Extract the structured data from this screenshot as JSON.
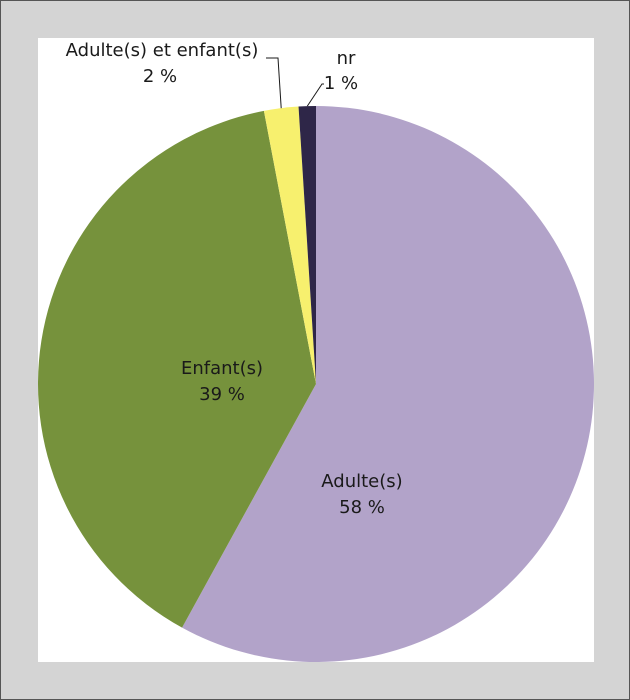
{
  "chart_data": {
    "type": "pie",
    "slices": [
      {
        "label": "Adulte(s)",
        "value_label": "58 %",
        "value": 58,
        "color": "#b2a3c9"
      },
      {
        "label": "Enfant(s)",
        "value_label": "39 %",
        "value": 39,
        "color": "#76923c"
      },
      {
        "label": "Adulte(s) et enfant(s)",
        "value_label": "2 %",
        "value": 2,
        "color": "#f7f06e"
      },
      {
        "label": "nr",
        "value_label": "1 %",
        "value": 1,
        "color": "#2e2648"
      }
    ]
  }
}
